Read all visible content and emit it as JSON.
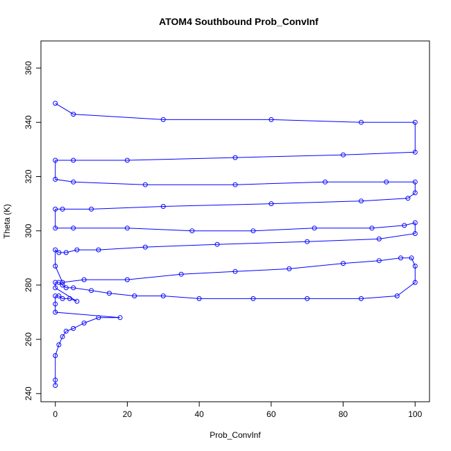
{
  "chart_data": {
    "type": "scatter",
    "title": "ATOM4 Southbound Prob_ConvInf",
    "xlabel": "Prob_ConvInf",
    "ylabel": "Theta (K)",
    "xlim": [
      -4,
      104
    ],
    "ylim": [
      237,
      370
    ],
    "x_ticks": [
      0,
      20,
      40,
      60,
      80,
      100
    ],
    "y_ticks": [
      240,
      260,
      280,
      300,
      320,
      340,
      360
    ],
    "grid": false,
    "legend": "none",
    "marker": "open-circle",
    "connected": true,
    "series_color": "#0000ff",
    "series": [
      {
        "x": [
          0,
          0,
          0,
          1,
          2,
          3,
          5,
          8,
          12,
          18,
          0,
          0,
          0,
          1,
          2,
          4,
          6,
          0,
          0,
          1,
          2,
          3,
          5,
          10,
          15,
          22,
          30,
          40,
          55,
          70,
          85,
          95,
          100,
          100,
          99,
          96,
          90,
          80,
          65,
          50,
          35,
          20,
          8,
          2,
          0,
          0,
          1,
          3,
          6,
          12,
          25,
          45,
          70,
          90,
          100,
          100,
          97,
          88,
          72,
          55,
          38,
          20,
          5,
          0,
          0,
          2,
          10,
          30,
          60,
          85,
          98,
          100,
          100,
          92,
          75,
          50,
          25,
          5,
          0,
          0,
          5,
          20,
          50,
          80,
          100,
          100,
          85,
          60,
          30,
          5,
          0
        ],
        "y": [
          243,
          245,
          254,
          258,
          261,
          263,
          264,
          266,
          268,
          268,
          270,
          273,
          276,
          276,
          275,
          275,
          274,
          279,
          281,
          281,
          280,
          279,
          279,
          278,
          277,
          276,
          276,
          275,
          275,
          275,
          275,
          276,
          281,
          287,
          290,
          290,
          289,
          288,
          286,
          285,
          284,
          282,
          282,
          281,
          287,
          293,
          292,
          292,
          293,
          293,
          294,
          295,
          296,
          297,
          299,
          303,
          302,
          301,
          301,
          300,
          300,
          301,
          301,
          301,
          308,
          308,
          308,
          309,
          310,
          311,
          312,
          314,
          318,
          318,
          318,
          317,
          317,
          318,
          319,
          326,
          326,
          326,
          327,
          328,
          329,
          340,
          340,
          341,
          341,
          343,
          347
        ]
      }
    ]
  }
}
